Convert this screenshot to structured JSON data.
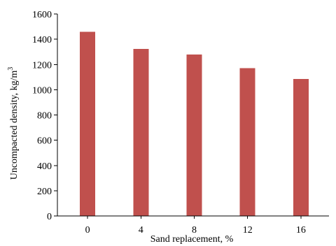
{
  "chart_data": {
    "type": "bar",
    "categories": [
      "0",
      "4",
      "8",
      "12",
      "16"
    ],
    "values": [
      1460,
      1322,
      1278,
      1172,
      1085
    ],
    "xlabel": "Sand replacement, %",
    "ylabel_main": "Uncompacted density, kg/m",
    "ylabel_sup": "3",
    "ylim": [
      0,
      1600
    ],
    "yticks": [
      0,
      200,
      400,
      600,
      800,
      1000,
      1200,
      1400,
      1600
    ],
    "grid": false,
    "legend": "none",
    "bar_color": "#c0504d"
  }
}
